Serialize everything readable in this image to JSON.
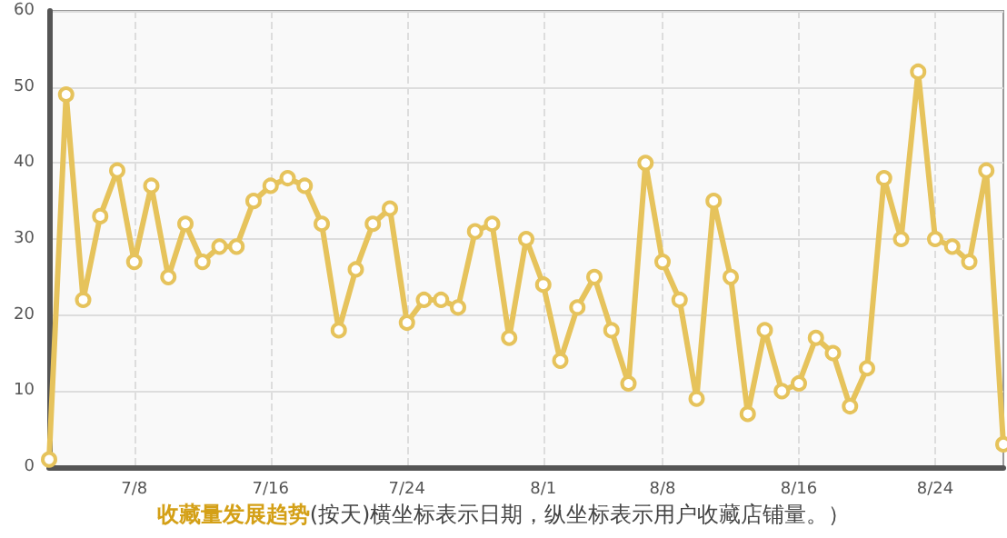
{
  "chart_data": {
    "type": "line",
    "title": "收藏量发展趋势",
    "subtitle": "(按天)横坐标表示日期，纵坐标表示用户收藏店铺量。）",
    "x": [
      "--07-03",
      "--07-04",
      "--07-05",
      "--07-06",
      "--07-07",
      "--07-08",
      "--07-09",
      "--07-10",
      "--07-11",
      "--07-12",
      "--07-13",
      "--07-14",
      "--07-15",
      "--07-16",
      "--07-17",
      "--07-18",
      "--07-19",
      "--07-20",
      "--07-21",
      "--07-22",
      "--07-23",
      "--07-24",
      "--07-25",
      "--07-26",
      "--07-27",
      "--07-28",
      "--07-29",
      "--07-30",
      "--07-31",
      "--08-01",
      "--08-02",
      "--08-03",
      "--08-04",
      "--08-05",
      "--08-06",
      "--08-07",
      "--08-08",
      "--08-09",
      "--08-10",
      "--08-11",
      "--08-12",
      "--08-13",
      "--08-14",
      "--08-15",
      "--08-16",
      "--08-17",
      "--08-18",
      "--08-19",
      "--08-20",
      "--08-21",
      "--08-22",
      "--08-23",
      "--08-24",
      "--08-25",
      "--08-26",
      "--08-27",
      "--08-28"
    ],
    "series": [
      {
        "color": "#e6c35c",
        "values": [
          1,
          49,
          22,
          33,
          39,
          27,
          37,
          25,
          32,
          27,
          29,
          29,
          35,
          37,
          38,
          37,
          32,
          18,
          26,
          32,
          34,
          19,
          22,
          22,
          21,
          31,
          32,
          17,
          30,
          24,
          14,
          21,
          25,
          18,
          11,
          40,
          27,
          22,
          9,
          35,
          25,
          7,
          18,
          10,
          11,
          17,
          15,
          8,
          13,
          38,
          30,
          52,
          30,
          29,
          27,
          39,
          3
        ]
      }
    ],
    "xlim": [
      "--07-03",
      "--08-28"
    ],
    "xticks": [
      {
        "value": "--07-08",
        "label": "7/8"
      },
      {
        "value": "--07-16",
        "label": "7/16"
      },
      {
        "value": "--07-24",
        "label": "7/24"
      },
      {
        "value": "--08-01",
        "label": "8/1"
      },
      {
        "value": "--08-08",
        "label": "8/8"
      },
      {
        "value": "--08-16",
        "label": "8/16"
      },
      {
        "value": "--08-24",
        "label": "8/24"
      }
    ],
    "ylim": [
      0,
      60
    ],
    "yticks": [
      0,
      10,
      20,
      30,
      40,
      50,
      60
    ],
    "grid": true,
    "marker": "circle",
    "line_style": "solid"
  }
}
